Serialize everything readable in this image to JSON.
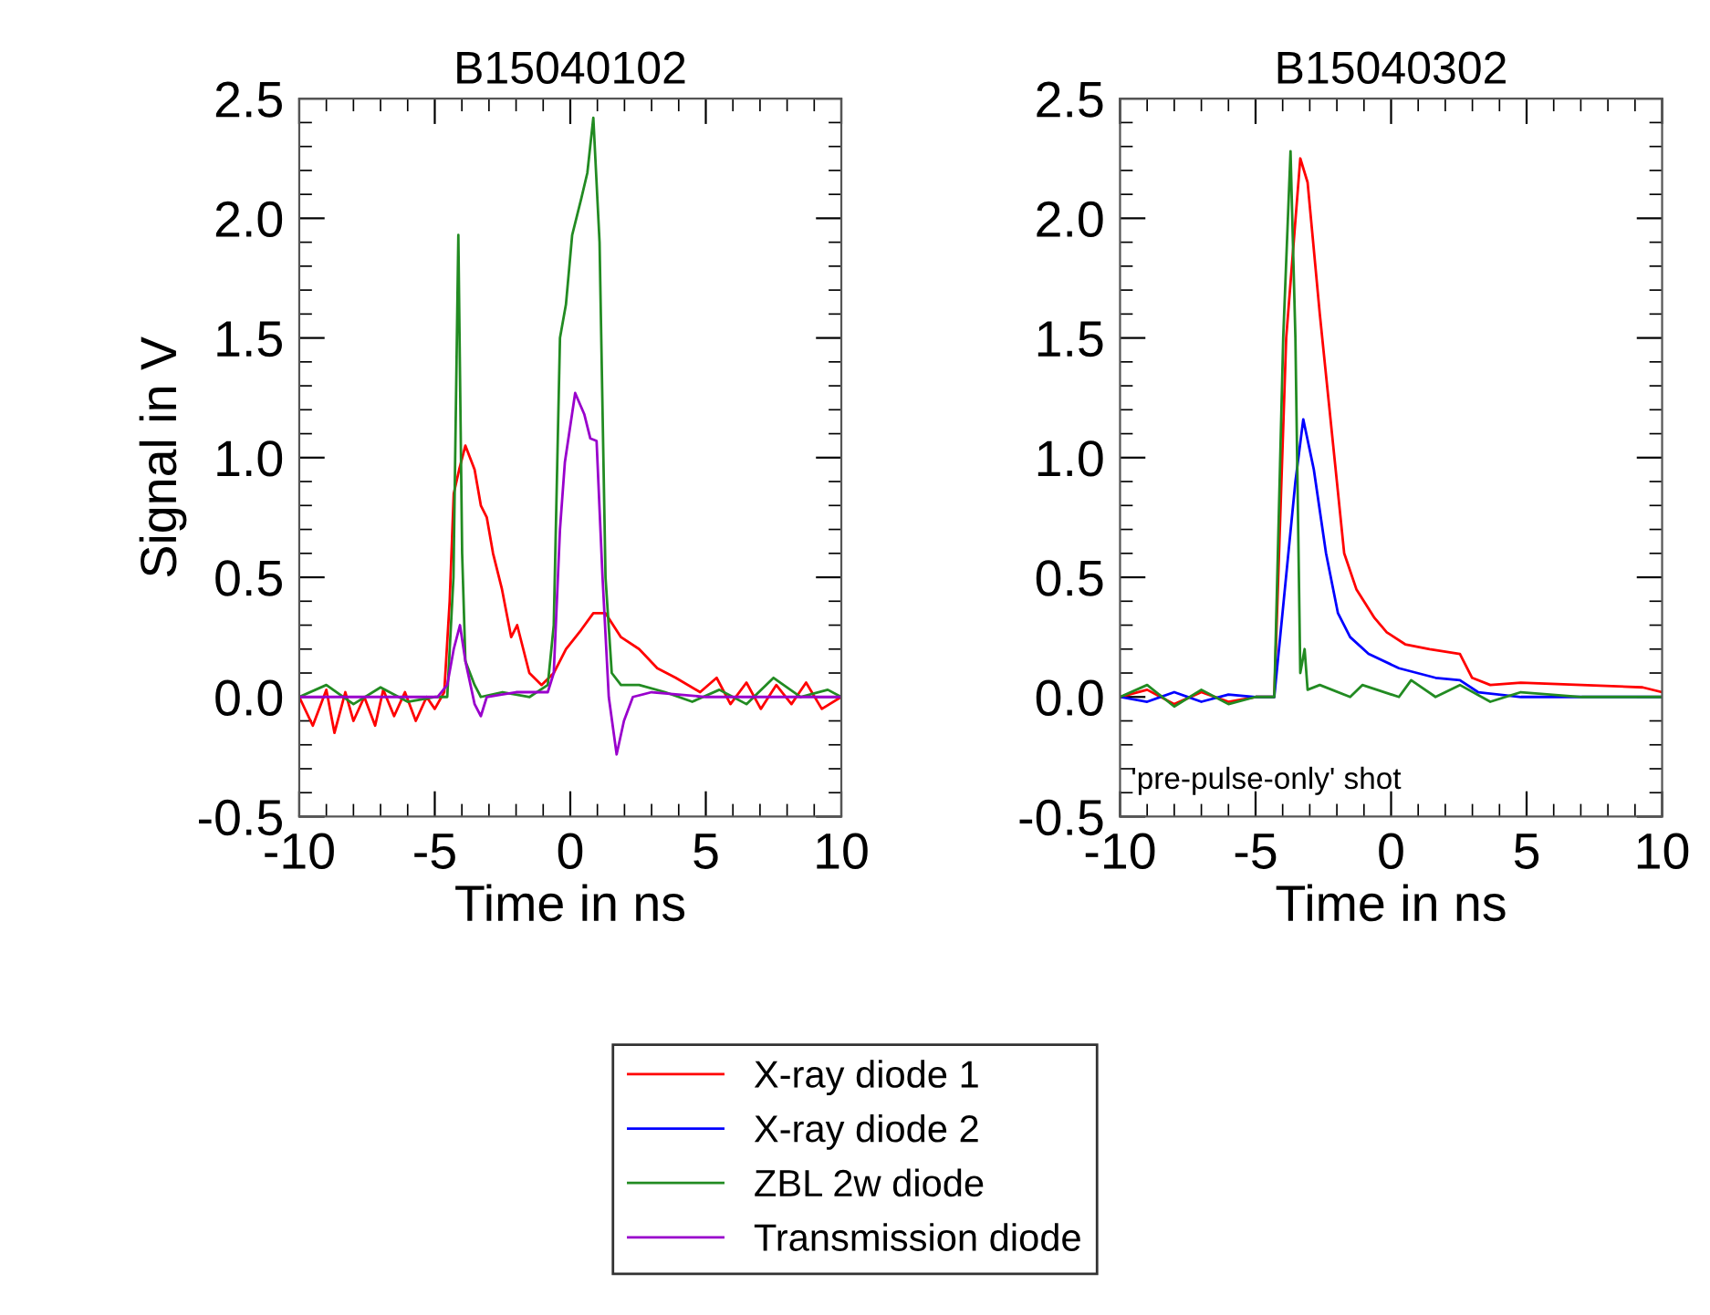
{
  "chart_data": [
    {
      "type": "line",
      "title": "B15040102",
      "xlabel": "Time in ns",
      "ylabel": "Signal in V",
      "xlim": [
        -10,
        10
      ],
      "xticks": [
        -10,
        -5,
        0,
        5,
        10
      ],
      "ylim": [
        -0.5,
        2.5
      ],
      "yticks": [
        -0.5,
        {
          "value": 0,
          "label": "0.0"
        },
        0.5,
        {
          "value": 1,
          "label": "1.0"
        },
        1.5,
        {
          "value": 2,
          "label": "2.0"
        },
        2.5
      ],
      "legend": "bottom",
      "grid": false,
      "series": [
        {
          "name": "X-ray diode 1",
          "color": "#ff0000",
          "x": [
            -10,
            -9.5,
            -9.0,
            -8.7,
            -8.3,
            -8.0,
            -7.6,
            -7.2,
            -6.9,
            -6.5,
            -6.1,
            -5.7,
            -5.3,
            -5.0,
            -4.65,
            -4.45,
            -4.3,
            -4.1,
            -3.87,
            -3.53,
            -3.3,
            -3.08,
            -2.85,
            -2.52,
            -2.18,
            -1.96,
            -1.51,
            -1.06,
            -0.61,
            -0.16,
            0.4,
            0.85,
            1.3,
            1.87,
            2.54,
            3.21,
            3.89,
            4.79,
            5.4,
            5.91,
            6.5,
            7.03,
            7.6,
            8.16,
            8.7,
            9.28,
            10
          ],
          "values": [
            0.0,
            -0.12,
            0.03,
            -0.15,
            0.02,
            -0.1,
            0.0,
            -0.12,
            0.03,
            -0.08,
            0.02,
            -0.1,
            0.0,
            -0.05,
            0.02,
            0.4,
            0.85,
            0.95,
            1.05,
            0.95,
            0.8,
            0.75,
            0.6,
            0.45,
            0.25,
            0.3,
            0.1,
            0.05,
            0.1,
            0.2,
            0.28,
            0.35,
            0.35,
            0.25,
            0.2,
            0.12,
            0.08,
            0.02,
            0.08,
            -0.03,
            0.06,
            -0.05,
            0.05,
            -0.03,
            0.06,
            -0.05,
            0.0
          ]
        },
        {
          "name": "ZBL 2w diode",
          "color": "#228b22",
          "x": [
            -10,
            -9.0,
            -8.0,
            -7.0,
            -6.0,
            -5.0,
            -4.54,
            -4.31,
            -4.13,
            -3.99,
            -3.87,
            -3.53,
            -3.3,
            -2.5,
            -1.5,
            -0.83,
            -0.61,
            -0.38,
            -0.16,
            0.07,
            0.4,
            0.63,
            0.85,
            1.08,
            1.3,
            1.53,
            1.87,
            2.54,
            3.5,
            4.5,
            5.5,
            6.5,
            7.5,
            8.5,
            9.5,
            10
          ],
          "values": [
            0.0,
            0.05,
            -0.03,
            0.04,
            -0.02,
            0.0,
            0.0,
            0.5,
            1.93,
            0.6,
            0.15,
            0.05,
            0.0,
            0.02,
            0.0,
            0.05,
            0.3,
            1.5,
            1.64,
            1.93,
            2.08,
            2.19,
            2.42,
            1.9,
            0.5,
            0.1,
            0.05,
            0.05,
            0.02,
            -0.02,
            0.03,
            -0.03,
            0.08,
            0.0,
            0.03,
            0.0
          ]
        },
        {
          "name": "Transmission diode",
          "color": "#9900cc",
          "x": [
            -10,
            -8.0,
            -6.0,
            -4.9,
            -4.54,
            -4.3,
            -4.07,
            -3.87,
            -3.53,
            -3.3,
            -3.08,
            -2.0,
            -0.83,
            -0.61,
            -0.38,
            -0.2,
            0.18,
            0.52,
            0.74,
            0.97,
            1.19,
            1.42,
            1.71,
            1.98,
            2.31,
            3.0,
            5.0,
            7.0,
            10
          ],
          "values": [
            0.0,
            0.0,
            0.0,
            0.0,
            0.05,
            0.2,
            0.3,
            0.15,
            -0.03,
            -0.08,
            0.0,
            0.02,
            0.02,
            0.1,
            0.7,
            0.98,
            1.27,
            1.18,
            1.08,
            1.07,
            0.5,
            0.0,
            -0.24,
            -0.1,
            0.0,
            0.02,
            0.0,
            0.0,
            0.0
          ]
        }
      ]
    },
    {
      "type": "line",
      "title": "B15040302",
      "xlabel": "Time in ns",
      "xlim": [
        -10,
        10
      ],
      "xticks": [
        -10,
        -5,
        0,
        5,
        10
      ],
      "ylim": [
        -0.5,
        2.5
      ],
      "yticks": [
        -0.5,
        {
          "value": 0,
          "label": "0.0"
        },
        0.5,
        {
          "value": 1,
          "label": "1.0"
        },
        1.5,
        {
          "value": 2,
          "label": "2.0"
        },
        2.5
      ],
      "legend": "bottom",
      "grid": false,
      "annotations": [
        "'pre-pulse-only' shot"
      ],
      "series": [
        {
          "name": "X-ray diode 1",
          "color": "#ff0000",
          "x": [
            -10,
            -9.0,
            -8.0,
            -7.0,
            -6.0,
            -5.0,
            -4.31,
            -3.87,
            -3.35,
            -3.08,
            -2.63,
            -2.18,
            -1.73,
            -1.28,
            -0.61,
            -0.16,
            0.52,
            1.42,
            2.54,
            2.99,
            3.66,
            4.79,
            7.03,
            9.28,
            10
          ],
          "values": [
            0.0,
            0.03,
            -0.03,
            0.02,
            -0.02,
            0.0,
            0.0,
            1.5,
            2.25,
            2.15,
            1.6,
            1.1,
            0.6,
            0.45,
            0.33,
            0.27,
            0.22,
            0.2,
            0.18,
            0.08,
            0.05,
            0.06,
            0.05,
            0.04,
            0.02
          ]
        },
        {
          "name": "X-ray diode 2",
          "color": "#0000ff",
          "x": [
            -10,
            -9.0,
            -8.0,
            -7.0,
            -6.0,
            -5.0,
            -4.31,
            -3.53,
            -3.24,
            -2.85,
            -2.4,
            -1.96,
            -1.51,
            -0.83,
            0.29,
            1.64,
            2.54,
            3.21,
            4.79,
            7.0,
            10
          ],
          "values": [
            0.0,
            -0.02,
            0.02,
            -0.02,
            0.01,
            0.0,
            0.0,
            0.9,
            1.16,
            0.95,
            0.6,
            0.35,
            0.25,
            0.18,
            0.12,
            0.08,
            0.07,
            0.02,
            0.0,
            0.0,
            0.0
          ]
        },
        {
          "name": "ZBL 2w diode",
          "color": "#228b22",
          "x": [
            -10,
            -9.0,
            -8.0,
            -7.0,
            -6.0,
            -5.0,
            -4.31,
            -3.98,
            -3.71,
            -3.53,
            -3.35,
            -3.19,
            -3.08,
            -2.63,
            -1.51,
            -1.06,
            0.29,
            0.74,
            1.64,
            2.54,
            3.66,
            4.79,
            7.03,
            10
          ],
          "values": [
            0.0,
            0.05,
            -0.04,
            0.03,
            -0.03,
            0.0,
            0.0,
            1.5,
            2.28,
            1.5,
            0.1,
            0.2,
            0.03,
            0.05,
            0.0,
            0.05,
            0.0,
            0.07,
            0.0,
            0.05,
            -0.02,
            0.02,
            0.0,
            0.0
          ]
        }
      ]
    }
  ]
}
